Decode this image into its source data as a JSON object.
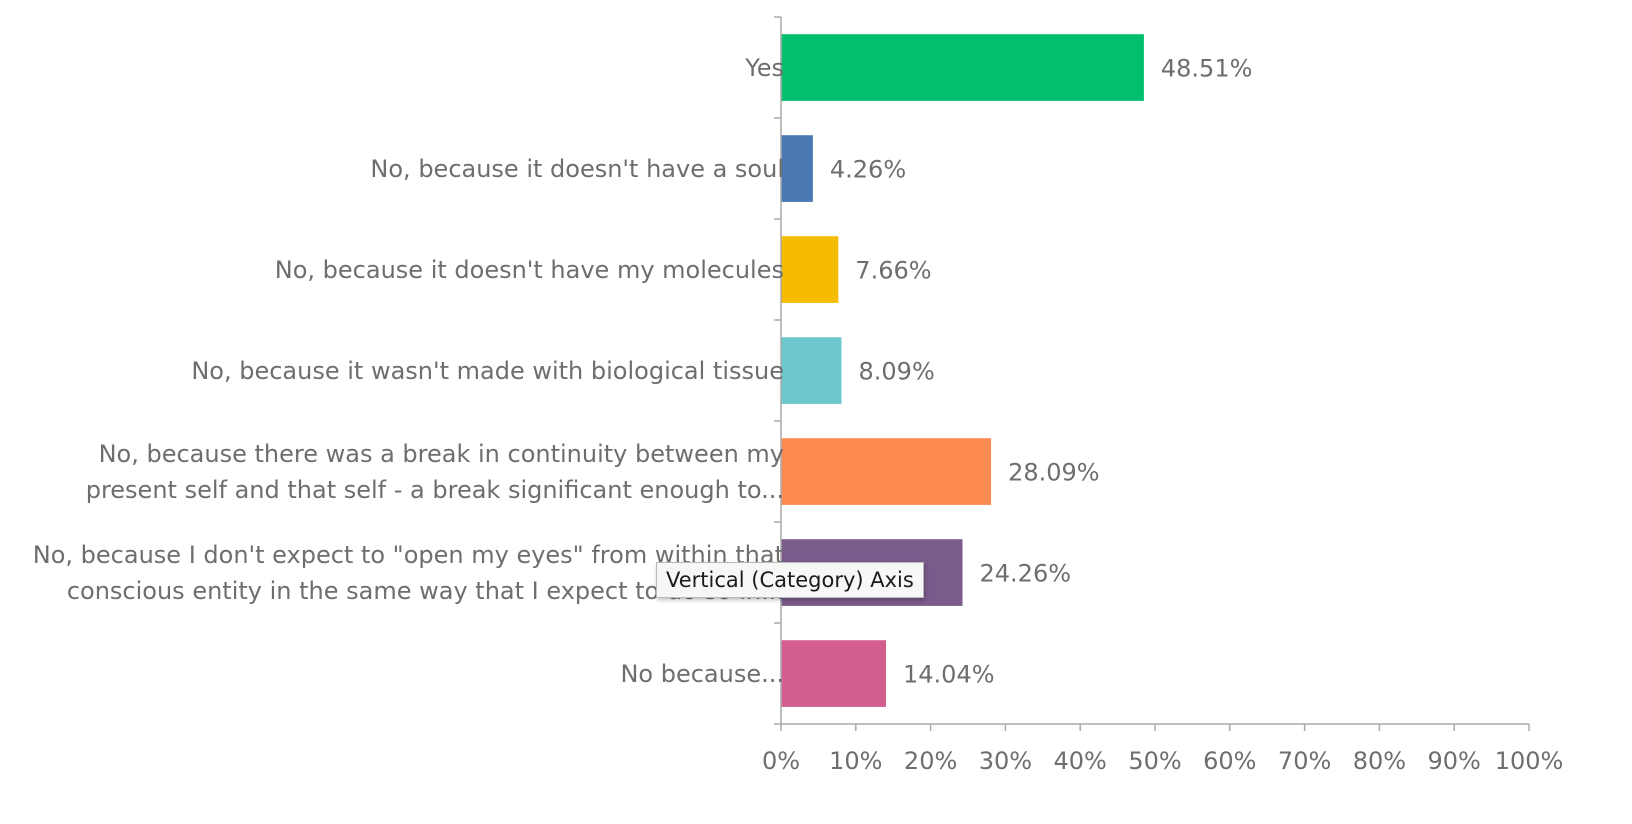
{
  "chart_data": {
    "type": "bar",
    "orientation": "horizontal",
    "categories": [
      "Yes",
      "No, because it doesn't have a soul",
      "No, because it doesn't have my molecules",
      "No, because it wasn't made with biological tissue",
      [
        "No, because there was a break in continuity between my",
        "present self and that self - a break significant enough to..."
      ],
      [
        "No, because I don't expect to \"open my eyes\" from within that",
        "conscious entity in the same way that I expect to do so in..."
      ],
      "No because..."
    ],
    "values": [
      48.51,
      4.26,
      7.66,
      8.09,
      28.09,
      24.26,
      14.04
    ],
    "data_labels": [
      "48.51%",
      "4.26%",
      "7.66%",
      "8.09%",
      "28.09%",
      "24.26%",
      "14.04%"
    ],
    "colors": [
      "#02bf6f",
      "#4a78b2",
      "#f6bd00",
      "#6cc8cd",
      "#fe8b4f",
      "#7b5a8c",
      "#d45f8f"
    ],
    "xlim": [
      0,
      100
    ],
    "x_ticks": [
      "0%",
      "10%",
      "20%",
      "30%",
      "40%",
      "50%",
      "60%",
      "70%",
      "80%",
      "90%",
      "100%"
    ],
    "grid": false,
    "axis_color": "#aaaaaa",
    "label_color": "#6e6e6e"
  },
  "tooltip": {
    "text": "Vertical (Category) Axis"
  }
}
